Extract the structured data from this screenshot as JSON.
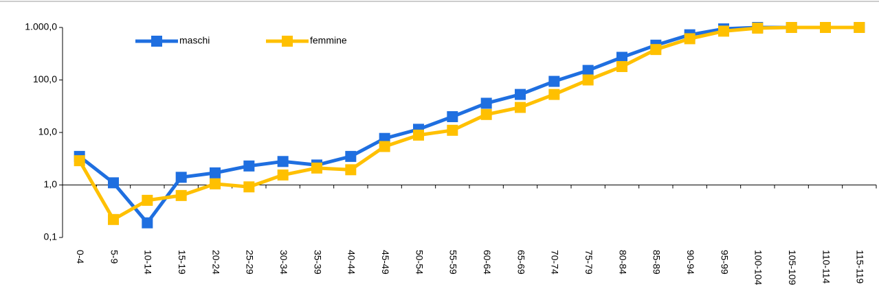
{
  "chart_data": {
    "type": "line",
    "log_scale": true,
    "legend": "top-left",
    "category_axis_at": 1,
    "categories": [
      "0-4",
      "5-9",
      "10-14",
      "15-19",
      "20-24",
      "25-29",
      "30-34",
      "35-39",
      "40-44",
      "45-49",
      "50-54",
      "55-59",
      "60-64",
      "65-69",
      "70-74",
      "75-79",
      "80-84",
      "85-89",
      "90-94",
      "95-99",
      "100-104",
      "105-109",
      "110-114",
      "115-119"
    ],
    "series": [
      {
        "name": "maschi",
        "color": "#1f6fe0",
        "values": [
          3.5,
          1.1,
          0.19,
          1.4,
          1.7,
          2.3,
          2.8,
          2.4,
          3.5,
          7.7,
          11.5,
          20,
          36,
          53,
          94,
          152,
          270,
          460,
          725,
          940,
          1000,
          1000,
          1000,
          1000
        ]
      },
      {
        "name": "femmine",
        "color": "#ffc000",
        "values": [
          2.9,
          0.22,
          0.51,
          0.63,
          1.05,
          0.92,
          1.55,
          2.1,
          1.95,
          5.4,
          8.9,
          11,
          22,
          30,
          53,
          100,
          180,
          380,
          610,
          850,
          970,
          1000,
          1000,
          1000
        ]
      }
    ],
    "ylim": [
      0.1,
      1000
    ],
    "yticks": [
      {
        "value": 0.1,
        "label": "0,1"
      },
      {
        "value": 1,
        "label": "1,0"
      },
      {
        "value": 10,
        "label": "10,0"
      },
      {
        "value": 100,
        "label": "100,0"
      },
      {
        "value": 1000,
        "label": "1.000,0"
      }
    ]
  }
}
